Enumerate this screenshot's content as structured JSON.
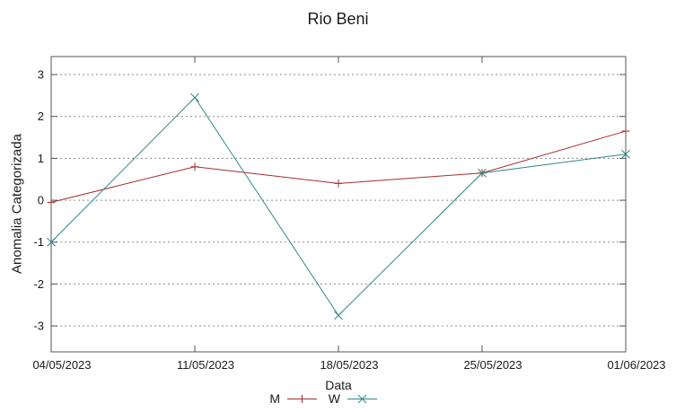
{
  "chart_data": {
    "type": "line",
    "title": "Rio Beni",
    "xlabel": "Data",
    "ylabel": "Anomalia Categorizada",
    "categories": [
      "04/05/2023",
      "11/05/2023",
      "18/05/2023",
      "25/05/2023",
      "01/06/2023"
    ],
    "series": [
      {
        "name": "M",
        "color": "#a52d2d",
        "marker": "plus",
        "values": [
          -0.05,
          0.8,
          0.4,
          0.65,
          1.65
        ]
      },
      {
        "name": "W",
        "color": "#2f8787",
        "marker": "cross",
        "values": [
          -1.0,
          2.45,
          -2.75,
          0.65,
          1.1
        ]
      }
    ],
    "yticks": [
      -3,
      -2,
      -1,
      0,
      1,
      2,
      3
    ],
    "ylim": [
      -3.62,
      3.43
    ],
    "grid": "horizontal-dotted",
    "legend_position": "bottom-center",
    "colors": {
      "axis": "#555555",
      "grid": "#8a8a8a",
      "text": "#1a1a1a"
    }
  }
}
